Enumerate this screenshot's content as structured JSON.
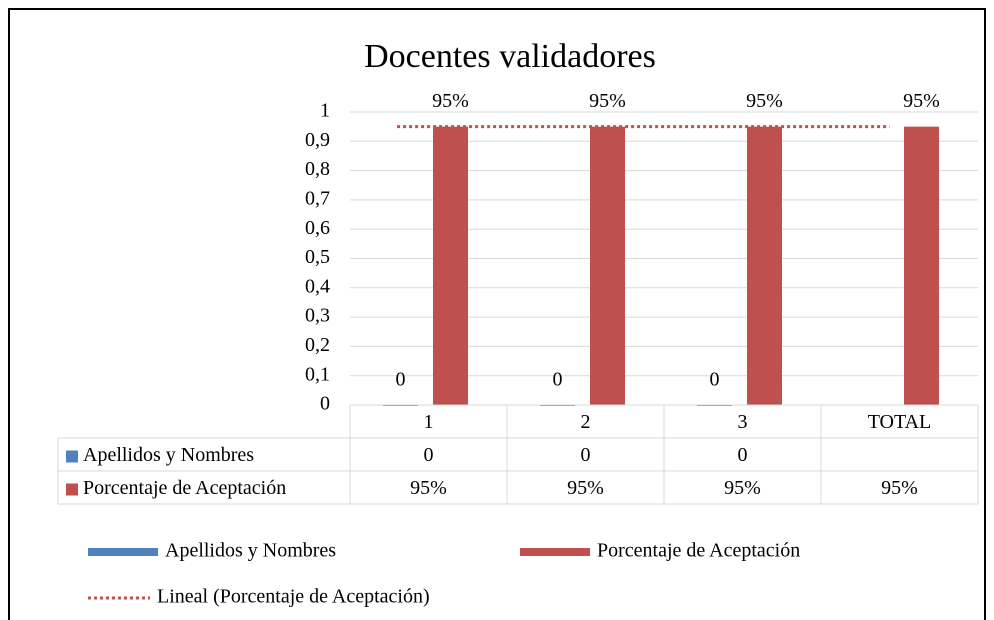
{
  "chart_data": {
    "type": "bar",
    "title": "Docentes validadores",
    "categories": [
      "1",
      "2",
      "3",
      "TOTAL"
    ],
    "series": [
      {
        "name": "Apellidos y Nombres",
        "color": "#4f81bd",
        "values": [
          0,
          0,
          0,
          null
        ]
      },
      {
        "name": "Porcentaje de Aceptación",
        "color": "#c0504d",
        "values": [
          0.95,
          0.95,
          0.95,
          0.95
        ],
        "value_labels": [
          "95%",
          "95%",
          "95%",
          "95%"
        ]
      }
    ],
    "trendline": {
      "name": "Lineal (Porcentaje de Aceptación)",
      "series": 1,
      "color": "#c0504d"
    },
    "ylim": [
      0,
      1
    ],
    "yticks": [
      0,
      {
        "value": 0.1,
        "label": "0,1"
      },
      {
        "value": 0.2,
        "label": "0,2"
      },
      {
        "value": 0.3,
        "label": "0,3"
      },
      {
        "value": 0.4,
        "label": "0,4"
      },
      {
        "value": 0.5,
        "label": "0,5"
      },
      {
        "value": 0.6,
        "label": "0,6"
      },
      {
        "value": 0.7,
        "label": "0,7"
      },
      {
        "value": 0.8,
        "label": "0,8"
      },
      {
        "value": 0.9,
        "label": "0,9"
      },
      1
    ],
    "grid": true,
    "data_table": true
  }
}
